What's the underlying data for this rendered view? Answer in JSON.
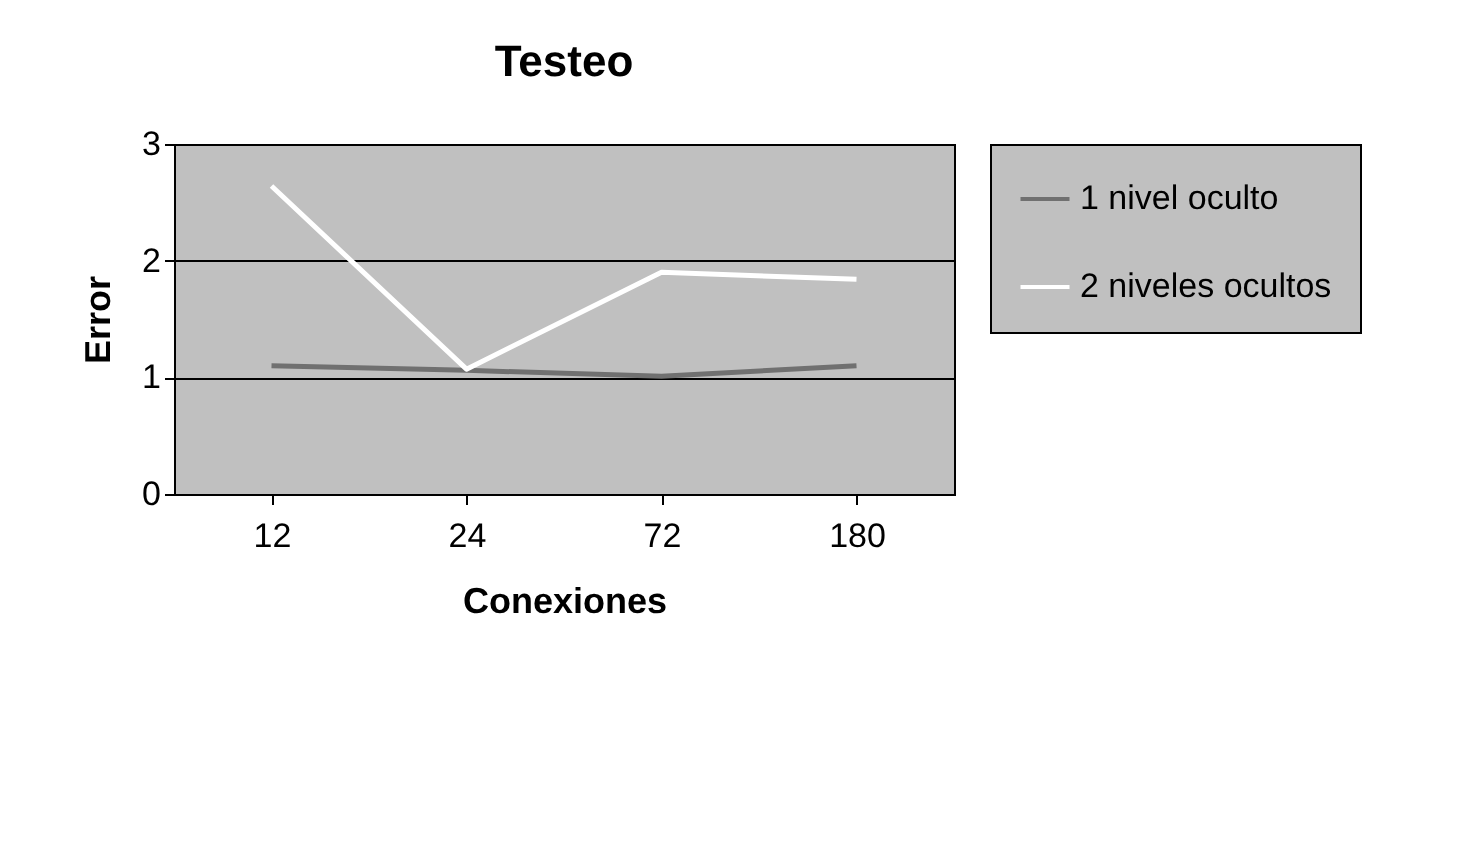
{
  "chart_data": {
    "type": "line",
    "title": "Testeo",
    "xlabel": "Conexiones",
    "ylabel": "Error",
    "categories": [
      "12",
      "24",
      "72",
      "180"
    ],
    "series": [
      {
        "name": "1 nivel oculto",
        "color": "#707070",
        "values": [
          1.1,
          1.06,
          1.01,
          1.1
        ]
      },
      {
        "name": "2 niveles ocultos",
        "color": "#ffffff",
        "values": [
          2.64,
          1.07,
          1.9,
          1.84
        ]
      }
    ],
    "ylim": [
      0,
      3
    ],
    "yticks": [
      0,
      1,
      2,
      3
    ],
    "grid": "y",
    "legend": "right",
    "marker": "none",
    "line_style": "solid"
  }
}
